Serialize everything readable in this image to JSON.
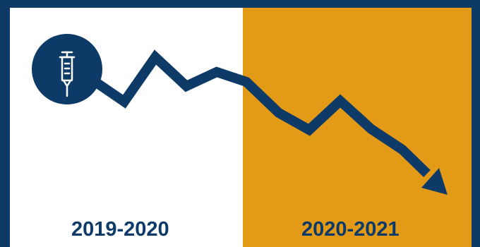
{
  "periods": [
    {
      "label": "2019-2020",
      "color": "#ffffff"
    },
    {
      "label": "2020-2021",
      "color": "#e39a16"
    }
  ],
  "colors": {
    "frame": "#0d3a67",
    "line": "#0d3a67",
    "icon_fg": "#ffffff"
  },
  "icon": "syringe-icon"
}
